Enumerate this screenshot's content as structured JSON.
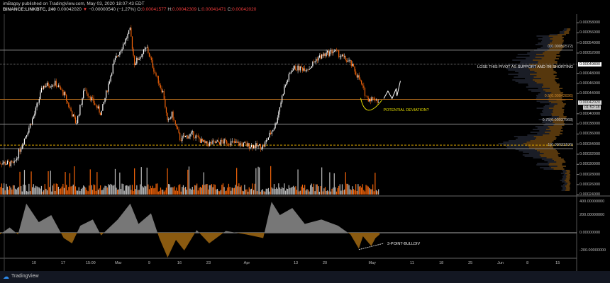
{
  "header": {
    "line1": "imBagsy published on TradingView.com, May 03, 2020 18:07:43 EDT",
    "symbol": "BINANCE:LINKBTC, 240",
    "last": "0.00042020",
    "change_arrow": "▼",
    "change": "−0.00000540 (−1.27%)",
    "o_label": "O:",
    "o": "0.00041577",
    "h_label": "H:",
    "h": "0.00042309",
    "l_label": "L:",
    "l": "0.00041471",
    "c_label": "C:",
    "c": "0.00042020"
  },
  "colors": {
    "up": "#ffffff",
    "down": "#f5650a",
    "fib_mid": "#a0601a",
    "annotation": "#e8e000",
    "osc_fill": "#8a5a10"
  },
  "chart_data": [
    {
      "type": "candlestick",
      "price_axis_ticks": [
        "0.00058000",
        "0.00056000",
        "0.00054000",
        "0.00052000",
        "0.00048000",
        "0.00046000",
        "0.00044000",
        "0.00040000",
        "0.00038000",
        "0.00036000",
        "0.00034000",
        "0.00032000",
        "0.00030000",
        "0.00028000",
        "0.00026000",
        "0.00024000"
      ],
      "price_axis_values": [
        0.00058,
        0.00056,
        0.00054,
        0.00052,
        0.00048,
        0.00046,
        0.00044,
        0.0004,
        0.00038,
        0.00036,
        0.00034,
        0.00032,
        0.0003,
        0.00028,
        0.00026,
        0.00024
      ],
      "time_axis": [
        {
          "label": "10",
          "date": "2020-02-10"
        },
        {
          "label": "17",
          "date": "2020-02-17"
        },
        {
          "label": "15:00",
          "date": "2020-02-23"
        },
        {
          "label": "Mar",
          "date": "2020-03-01"
        },
        {
          "label": "9",
          "date": "2020-03-09"
        },
        {
          "label": "16",
          "date": "2020-03-16"
        },
        {
          "label": "23",
          "date": "2020-03-23"
        },
        {
          "label": "Apr",
          "date": "2020-04-01"
        },
        {
          "label": "13",
          "date": "2020-04-13"
        },
        {
          "label": "20",
          "date": "2020-04-20"
        },
        {
          "label": "May",
          "date": "2020-05-01"
        },
        {
          "label": "11",
          "date": "2020-05-11"
        },
        {
          "label": "18",
          "date": "2020-05-18"
        },
        {
          "label": "25",
          "date": "2020-05-25"
        },
        {
          "label": "Jun",
          "date": "2020-06-01"
        },
        {
          "label": "8",
          "date": "2020-06-08"
        },
        {
          "label": "15",
          "date": "2020-06-15"
        }
      ],
      "price_path": [
        [
          "2020-02-01",
          0.000305
        ],
        [
          "2020-02-05",
          0.0003
        ],
        [
          "2020-02-07",
          0.00034
        ],
        [
          "2020-02-10",
          0.0004
        ],
        [
          "2020-02-12",
          0.000455
        ],
        [
          "2020-02-15",
          0.00046
        ],
        [
          "2020-02-17",
          0.00044
        ],
        [
          "2020-02-20",
          0.00038
        ],
        [
          "2020-02-22",
          0.00045
        ],
        [
          "2020-02-26",
          0.0004
        ],
        [
          "2020-02-29",
          0.0005
        ],
        [
          "2020-03-04",
          0.000565
        ],
        [
          "2020-03-05",
          0.0005
        ],
        [
          "2020-03-08",
          0.00053
        ],
        [
          "2020-03-10",
          0.00048
        ],
        [
          "2020-03-12",
          0.00044
        ],
        [
          "2020-03-13",
          0.00038
        ],
        [
          "2020-03-14",
          0.0004
        ],
        [
          "2020-03-16",
          0.00035
        ],
        [
          "2020-03-19",
          0.00036
        ],
        [
          "2020-03-22",
          0.00034
        ],
        [
          "2020-03-27",
          0.000345
        ],
        [
          "2020-04-01",
          0.000338
        ],
        [
          "2020-04-05",
          0.000335
        ],
        [
          "2020-04-08",
          0.00038
        ],
        [
          "2020-04-10",
          0.00045
        ],
        [
          "2020-04-12",
          0.00049
        ],
        [
          "2020-04-16",
          0.00049
        ],
        [
          "2020-04-18",
          0.00051
        ],
        [
          "2020-04-22",
          0.000525
        ],
        [
          "2020-04-26",
          0.0005
        ],
        [
          "2020-04-28",
          0.00047
        ],
        [
          "2020-04-30",
          0.00043
        ],
        [
          "2020-05-02",
          0.00043
        ],
        [
          "2020-05-03",
          0.00042
        ]
      ],
      "projection_path": [
        [
          "2020-05-04",
          0.00043
        ],
        [
          "2020-05-05",
          0.000445
        ],
        [
          "2020-05-06",
          0.00043
        ],
        [
          "2020-05-07",
          0.00045
        ],
        [
          "2020-05-07",
          0.000435
        ],
        [
          "2020-05-08",
          0.000465
        ]
      ],
      "fib_levels": [
        {
          "label": "0(0.00052572)",
          "value": 0.00052572
        },
        {
          "label": "0.5(0.00042836)",
          "value": 0.00042836
        },
        {
          "label": "0.75(0.00037968)",
          "value": 0.00037968
        },
        {
          "label": "1(0.00033106)",
          "value": 0.00033106
        }
      ],
      "pivot": {
        "value": 0.000498,
        "label": "0.00049800",
        "note": "LOSE THIS PIVOT AS SUPPORT AND I'M SHORTING"
      },
      "support_dashed": 0.000338,
      "last_price_label": "0.00042020",
      "countdown": "01:52:18",
      "annotation": "POTENTIAL DEVIATION?"
    },
    {
      "type": "area",
      "axis_ticks": [
        "400.00000000",
        "200.00000000",
        "0.00000000",
        "-200.00000000"
      ],
      "axis_values": [
        400,
        200,
        0,
        -200
      ],
      "path": [
        [
          "2020-02-01",
          -40
        ],
        [
          "2020-02-04",
          60
        ],
        [
          "2020-02-06",
          -20
        ],
        [
          "2020-02-08",
          330
        ],
        [
          "2020-02-11",
          120
        ],
        [
          "2020-02-14",
          200
        ],
        [
          "2020-02-17",
          -60
        ],
        [
          "2020-02-19",
          -120
        ],
        [
          "2020-02-21",
          80
        ],
        [
          "2020-02-24",
          150
        ],
        [
          "2020-02-26",
          -30
        ],
        [
          "2020-03-01",
          150
        ],
        [
          "2020-03-04",
          330
        ],
        [
          "2020-03-06",
          100
        ],
        [
          "2020-03-09",
          220
        ],
        [
          "2020-03-11",
          -60
        ],
        [
          "2020-03-13",
          -280
        ],
        [
          "2020-03-15",
          -80
        ],
        [
          "2020-03-17",
          -200
        ],
        [
          "2020-03-20",
          30
        ],
        [
          "2020-03-23",
          -120
        ],
        [
          "2020-03-27",
          20
        ],
        [
          "2020-04-01",
          -20
        ],
        [
          "2020-04-05",
          -60
        ],
        [
          "2020-04-07",
          350
        ],
        [
          "2020-04-09",
          200
        ],
        [
          "2020-04-12",
          280
        ],
        [
          "2020-04-15",
          100
        ],
        [
          "2020-04-19",
          150
        ],
        [
          "2020-04-23",
          80
        ],
        [
          "2020-04-26",
          -20
        ],
        [
          "2020-04-28",
          -180
        ],
        [
          "2020-04-29",
          -40
        ],
        [
          "2020-05-01",
          -150
        ],
        [
          "2020-05-02",
          -60
        ],
        [
          "2020-05-03",
          -20
        ]
      ],
      "annotation": "3-POINT-BULLDIV"
    }
  ],
  "footer": {
    "brand": "TradingView"
  }
}
